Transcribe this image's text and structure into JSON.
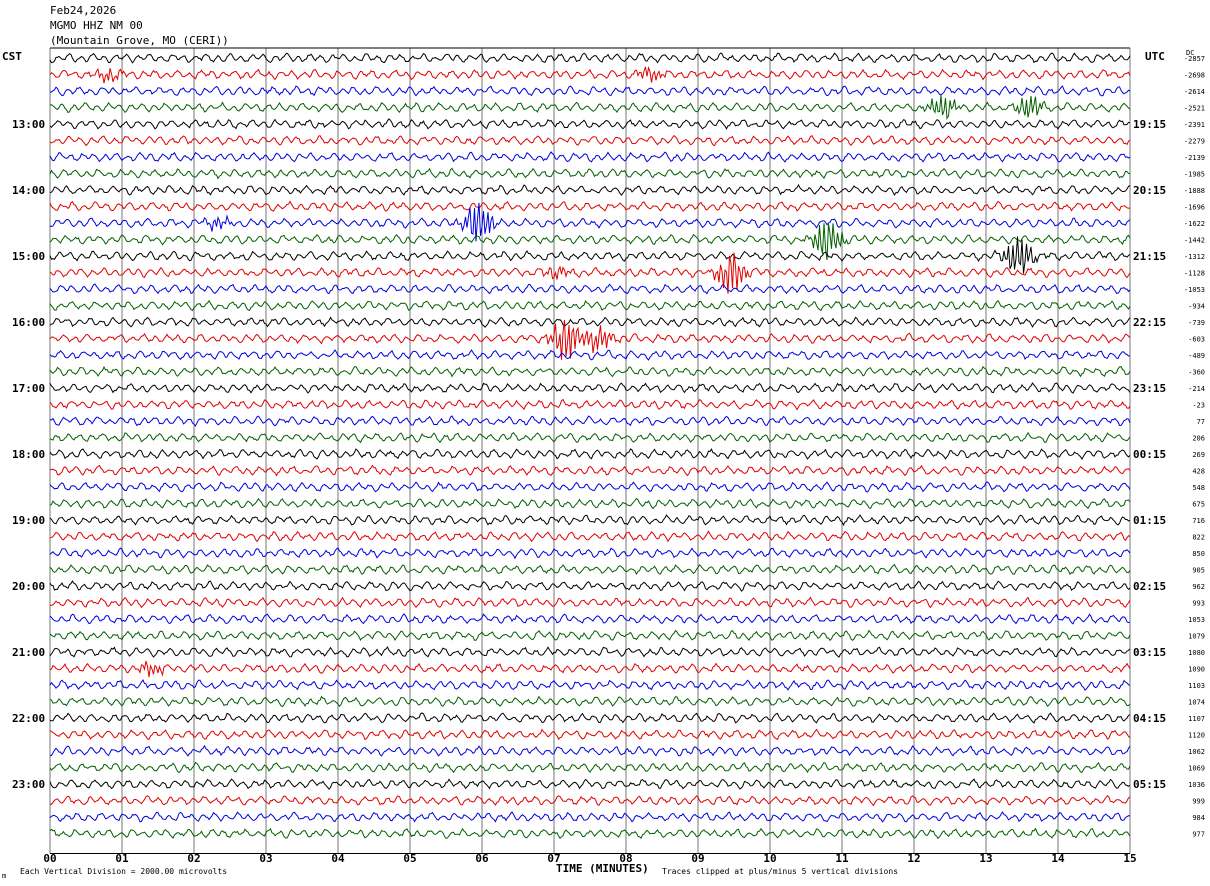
{
  "header": {
    "date": "Feb24,2026",
    "station": "MGMO HHZ NM 00",
    "location": "(Mountain Grove, MO (CERI))"
  },
  "left_timezone": "CST",
  "right_timezone": "UTC",
  "dc_header": "DC",
  "footer": {
    "left_note": "Each Vertical Division = 2000.00 microvolts",
    "right_note": "Traces clipped at plus/minus 5 vertical divisions"
  },
  "corner_mark": "m",
  "colors": {
    "cycle": [
      "#000000",
      "#e00000",
      "#0000e0",
      "#006000"
    ]
  },
  "chart_data": {
    "type": "line",
    "title": "MGMO HHZ NM 00",
    "xlabel": "TIME (MINUTES)",
    "ylabel": "",
    "x_ticks": [
      "00",
      "01",
      "02",
      "03",
      "04",
      "05",
      "06",
      "07",
      "08",
      "09",
      "10",
      "11",
      "12",
      "13",
      "14",
      "15"
    ],
    "xlim": [
      0,
      15
    ],
    "trace_minutes": 15,
    "left_hour_labels": [
      "13:00",
      "14:00",
      "15:00",
      "16:00",
      "17:00",
      "18:00",
      "19:00",
      "20:00",
      "21:00",
      "22:00",
      "23:00"
    ],
    "right_hour_labels": [
      "19:15",
      "20:15",
      "21:15",
      "22:15",
      "23:15",
      "00:15",
      "01:15",
      "02:15",
      "03:15",
      "04:15",
      "05:15"
    ],
    "hour_label_first_trace": 4,
    "dc_offsets": [
      -2857,
      -2698,
      -2614,
      -2521,
      -2391,
      -2279,
      -2139,
      -1985,
      -1888,
      -1696,
      -1622,
      -1442,
      -1312,
      -1128,
      -1053,
      -934,
      -739,
      -603,
      -489,
      -360,
      -214,
      -23,
      77,
      206,
      269,
      428,
      548,
      675,
      716,
      822,
      850,
      905,
      962,
      993,
      1053,
      1079,
      1080,
      1090,
      1103,
      1074,
      1107,
      1120,
      1062,
      1069,
      1036,
      999,
      984,
      977
    ],
    "events": [
      {
        "trace": 1,
        "minute": 0.8,
        "amplitude": "small"
      },
      {
        "trace": 1,
        "minute": 8.35,
        "amplitude": "small"
      },
      {
        "trace": 3,
        "minute": 12.4,
        "amplitude": "medium"
      },
      {
        "trace": 3,
        "minute": 13.6,
        "amplitude": "medium"
      },
      {
        "trace": 10,
        "minute": 2.35,
        "amplitude": "small"
      },
      {
        "trace": 10,
        "minute": 5.95,
        "amplitude": "large"
      },
      {
        "trace": 11,
        "minute": 10.8,
        "amplitude": "large"
      },
      {
        "trace": 12,
        "minute": 13.45,
        "amplitude": "large"
      },
      {
        "trace": 13,
        "minute": 7.05,
        "amplitude": "small"
      },
      {
        "trace": 13,
        "minute": 9.45,
        "amplitude": "large"
      },
      {
        "trace": 17,
        "minute": 7.15,
        "amplitude": "large"
      },
      {
        "trace": 17,
        "minute": 7.6,
        "amplitude": "medium"
      },
      {
        "trace": 37,
        "minute": 1.4,
        "amplitude": "small"
      }
    ]
  }
}
